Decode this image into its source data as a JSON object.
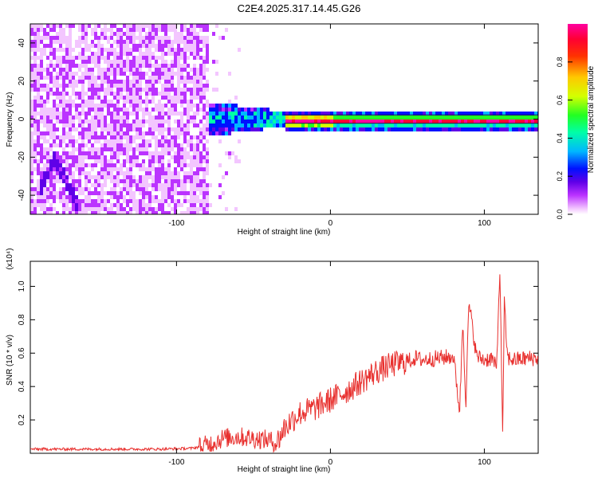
{
  "title": "C2E4.2025.317.14.45.G26",
  "chart_data": [
    {
      "type": "heatmap",
      "xlabel": "Height of straight line (km)",
      "ylabel": "Frequency (Hz)",
      "xlim": [
        -195,
        135
      ],
      "ylim": [
        -50,
        50
      ],
      "xticks": [
        -100,
        0,
        100
      ],
      "yticks": [
        -40,
        -20,
        0,
        20,
        40
      ],
      "colorbar": {
        "label": "Normalized spectral amplitude",
        "range": [
          0,
          1
        ],
        "ticks": [
          0.0,
          0.2,
          0.4,
          0.6,
          0.8
        ],
        "colors": [
          "#ffffff",
          "#f3c6ff",
          "#bb33ff",
          "#5f00e8",
          "#0011ff",
          "#00b7ff",
          "#00ffa8",
          "#22ff22",
          "#d4ff00",
          "#ffc800",
          "#ff3300",
          "#ff0033",
          "#ff00a0"
        ]
      },
      "regions": [
        {
          "x": [
            -195,
            -80
          ],
          "description_level": 0.18
        },
        {
          "x": [
            -80,
            -30
          ],
          "freq_band": [
            -8,
            10
          ],
          "level": 0.4
        },
        {
          "x": [
            -30,
            135
          ],
          "freq_band": [
            -2,
            2
          ],
          "level": 0.95
        }
      ]
    },
    {
      "type": "line",
      "xlabel": "Height of straight line (km)",
      "ylabel": "SNR (10 * v/v)",
      "yscale_label": "(x10⁴)",
      "xlim": [
        -195,
        135
      ],
      "ylim": [
        0,
        1.15
      ],
      "xticks": [
        -100,
        0,
        100
      ],
      "yticks": [
        0.2,
        0.4,
        0.6,
        0.8,
        1.0
      ],
      "color": "#e8302e",
      "series": [
        {
          "x": [
            -195,
            -170,
            -140,
            -110,
            -90,
            -80,
            -70,
            -60,
            -50,
            -40,
            -35,
            -30,
            -25,
            -20,
            -10,
            0,
            10,
            20,
            30,
            40,
            50,
            55,
            60,
            70,
            80,
            84,
            86,
            88,
            90,
            95,
            100,
            105,
            108,
            110,
            112,
            113,
            115,
            120,
            130,
            135
          ],
          "y": [
            0.025,
            0.025,
            0.025,
            0.025,
            0.03,
            0.05,
            0.09,
            0.1,
            0.09,
            0.08,
            0.06,
            0.15,
            0.2,
            0.24,
            0.27,
            0.32,
            0.37,
            0.43,
            0.49,
            0.53,
            0.55,
            0.57,
            0.56,
            0.57,
            0.58,
            0.25,
            0.8,
            0.3,
            0.9,
            0.58,
            0.56,
            0.57,
            0.5,
            1.12,
            0.1,
            0.9,
            0.57,
            0.56,
            0.57,
            0.57
          ]
        }
      ]
    }
  ]
}
